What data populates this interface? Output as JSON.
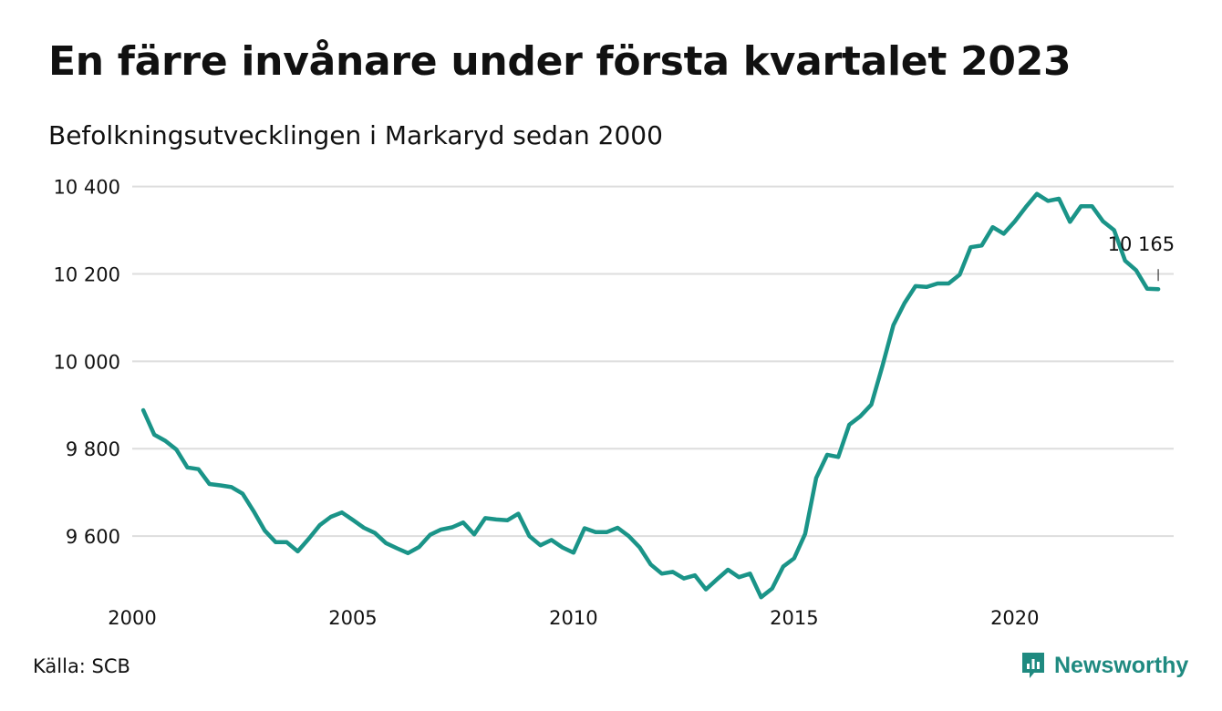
{
  "chart_data": {
    "type": "line",
    "title": "En färre invånare under första kvartalet 2023",
    "subtitle": "Befolkningsutvecklingen i Markaryd sedan 2000",
    "xlabel": "",
    "ylabel": "",
    "x_unit": "year",
    "xlim": [
      2000,
      2023.6
    ],
    "ylim": [
      9450,
      10420
    ],
    "y_ticks": [
      9600,
      9800,
      10000,
      10200,
      10400
    ],
    "y_tick_labels": [
      "9 600",
      "9 800",
      "10 000",
      "10 200",
      "10 400"
    ],
    "x_ticks": [
      2000,
      2005,
      2010,
      2015,
      2020
    ],
    "x_tick_labels": [
      "2000",
      "2005",
      "2010",
      "2015",
      "2020"
    ],
    "grid": "horizontal",
    "legend": "none",
    "color": "#1a9488",
    "annotation": {
      "x": 2023.25,
      "y": 10165,
      "text": "10 165"
    },
    "series": [
      {
        "x": [
          2000.25,
          2000.5,
          2000.75,
          2001.0,
          2001.25,
          2001.5,
          2001.75,
          2002.0,
          2002.25,
          2002.5,
          2002.75,
          2003.0,
          2003.25,
          2003.5,
          2003.75,
          2004.0,
          2004.25,
          2004.5,
          2004.75,
          2005.0,
          2005.25,
          2005.5,
          2005.75,
          2006.0,
          2006.25,
          2006.5,
          2006.75,
          2007.0,
          2007.25,
          2007.5,
          2007.75,
          2008.0,
          2008.25,
          2008.5,
          2008.75,
          2009.0,
          2009.25,
          2009.5,
          2009.75,
          2010.0,
          2010.25,
          2010.5,
          2010.75,
          2011.0,
          2011.25,
          2011.5,
          2011.75,
          2012.0,
          2012.25,
          2012.5,
          2012.75,
          2013.0,
          2013.25,
          2013.5,
          2013.75,
          2014.0,
          2014.25,
          2014.5,
          2014.75,
          2015.0,
          2015.25,
          2015.5,
          2015.75,
          2016.0,
          2016.25,
          2016.5,
          2016.75,
          2017.0,
          2017.25,
          2017.5,
          2017.75,
          2018.0,
          2018.25,
          2018.5,
          2018.75,
          2019.0,
          2019.25,
          2019.5,
          2019.75,
          2020.0,
          2020.25,
          2020.5,
          2020.75,
          2021.0,
          2021.25,
          2021.5,
          2021.75,
          2022.0,
          2022.25,
          2022.5,
          2022.75,
          2023.0,
          2023.25
        ],
        "values": [
          9888,
          9832,
          9818,
          9798,
          9757,
          9753,
          9719,
          9716,
          9712,
          9697,
          9657,
          9613,
          9586,
          9586,
          9565,
          9594,
          9625,
          9644,
          9654,
          9637,
          9619,
          9607,
          9584,
          9572,
          9561,
          9575,
          9603,
          9615,
          9620,
          9631,
          9604,
          9641,
          9638,
          9636,
          9651,
          9600,
          9579,
          9591,
          9574,
          9562,
          9618,
          9609,
          9609,
          9619,
          9600,
          9574,
          9535,
          9514,
          9518,
          9503,
          9510,
          9478,
          9501,
          9523,
          9506,
          9514,
          9460,
          9480,
          9530,
          9549,
          9605,
          9733,
          9786,
          9781,
          9855,
          9874,
          9901,
          9989,
          10083,
          10133,
          10172,
          10170,
          10178,
          10178,
          10198,
          10261,
          10265,
          10307,
          10292,
          10320,
          10353,
          10383,
          10367,
          10372,
          10319,
          10355,
          10355,
          10320,
          10300,
          10230,
          10208,
          10166,
          10165
        ]
      }
    ]
  },
  "source": "Källa: SCB",
  "brand": {
    "name": "Newsworthy",
    "color": "#1f8a80"
  }
}
